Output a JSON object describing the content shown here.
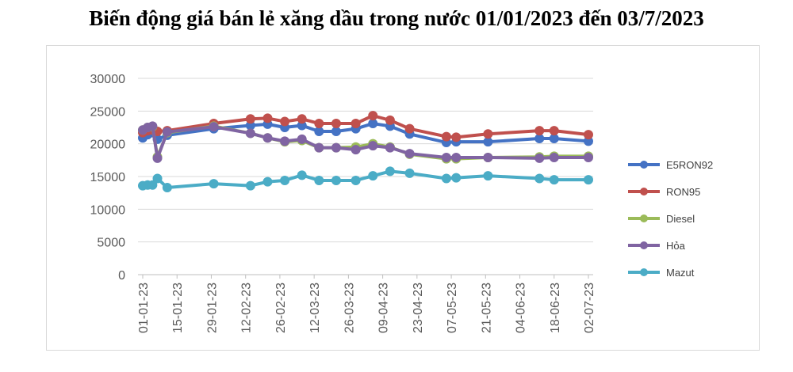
{
  "chart_data": {
    "type": "line",
    "title": "Biến động giá bán lẻ xăng dầu trong nước 01/01/2023 đến 03/7/2023",
    "xlabel": "",
    "ylabel": "",
    "ylim": [
      0,
      30000
    ],
    "yticks": [
      0,
      5000,
      10000,
      15000,
      20000,
      25000,
      30000
    ],
    "grid": true,
    "legend_position": "right",
    "x_tick_labels": [
      "01-01-23",
      "15-01-23",
      "29-01-23",
      "12-02-23",
      "26-02-23",
      "12-03-23",
      "26-03-23",
      "09-04-23",
      "23-04-23",
      "07-05-23",
      "21-05-23",
      "04-06-23",
      "18-06-23",
      "02-07-23"
    ],
    "x": [
      "2023-01-01",
      "2023-01-03",
      "2023-01-05",
      "2023-01-07",
      "2023-01-11",
      "2023-01-30",
      "2023-02-14",
      "2023-02-21",
      "2023-02-28",
      "2023-03-07",
      "2023-03-14",
      "2023-03-21",
      "2023-03-29",
      "2023-04-05",
      "2023-04-12",
      "2023-04-20",
      "2023-05-05",
      "2023-05-09",
      "2023-05-22",
      "2023-06-12",
      "2023-06-18",
      "2023-07-02"
    ],
    "series": [
      {
        "name": "E5RON92",
        "color": "#4472C4",
        "values": [
          20900,
          21400,
          21700,
          20700,
          21300,
          22300,
          22800,
          23000,
          22500,
          22800,
          21900,
          21900,
          22300,
          23100,
          22700,
          21500,
          20200,
          20300,
          20300,
          20800,
          20800,
          20400
        ]
      },
      {
        "name": "RON95",
        "color": "#C0504D",
        "values": [
          21700,
          22000,
          22100,
          21900,
          22000,
          23100,
          23800,
          23900,
          23400,
          23800,
          23100,
          23100,
          23100,
          24300,
          23600,
          22300,
          21100,
          21000,
          21500,
          22000,
          22000,
          21400
        ]
      },
      {
        "name": "Diesel",
        "color": "#9BBB59",
        "values": [
          22100,
          22500,
          22600,
          18000,
          21700,
          22700,
          21600,
          20900,
          20300,
          20500,
          19400,
          19400,
          19500,
          20000,
          19500,
          18400,
          17700,
          17700,
          17900,
          18000,
          18100,
          18100
        ]
      },
      {
        "name": "Hỏa",
        "color": "#8064A2",
        "values": [
          22100,
          22500,
          22700,
          17800,
          21800,
          22600,
          21600,
          20900,
          20400,
          20700,
          19400,
          19400,
          19100,
          19700,
          19400,
          18500,
          17900,
          17900,
          17900,
          17800,
          17900,
          17900
        ]
      },
      {
        "name": "Mazut",
        "color": "#4BACC6",
        "values": [
          13600,
          13700,
          13700,
          14700,
          13300,
          13900,
          13600,
          14200,
          14400,
          15200,
          14400,
          14400,
          14400,
          15100,
          15800,
          15500,
          14700,
          14800,
          15100,
          14700,
          14500,
          14500
        ]
      }
    ]
  }
}
